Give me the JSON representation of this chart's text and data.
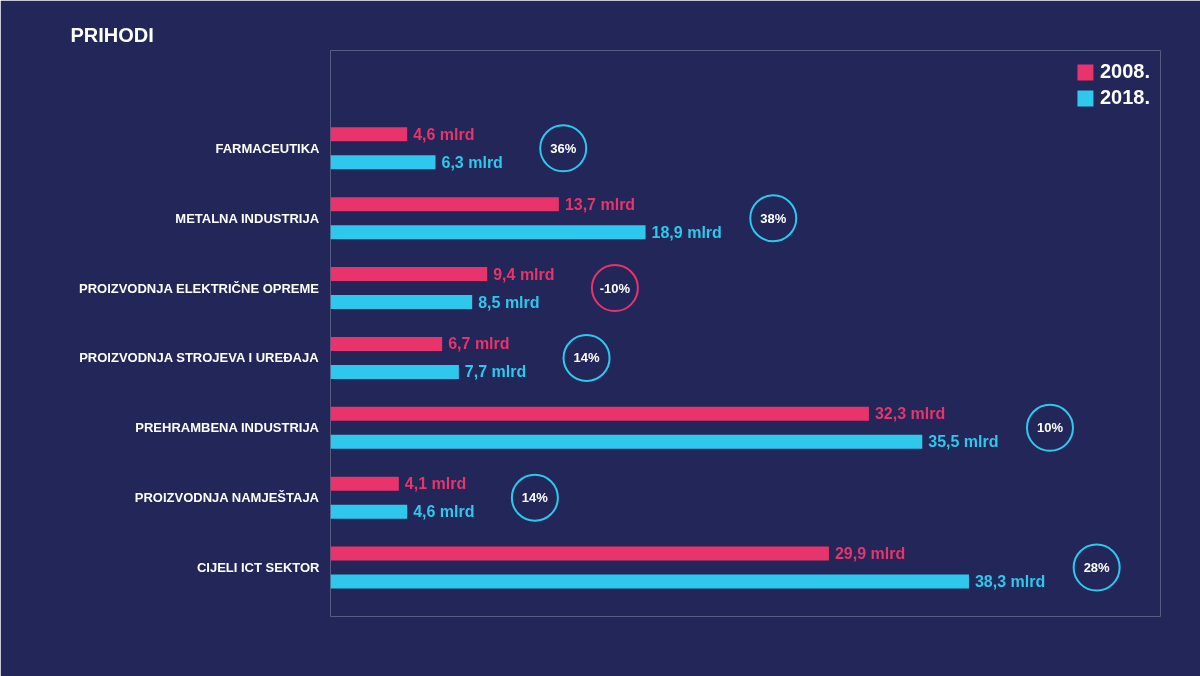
{
  "chart_data": {
    "type": "bar",
    "orientation": "horizontal",
    "title": "PRIHODI",
    "categories": [
      "FARMACEUTIKA",
      "METALNA INDUSTRIJA",
      "PROIZVODNJA ELEKTRIČNE OPREME",
      "PROIZVODNJA STROJEVA I UREĐAJA",
      "PREHRAMBENA INDUSTRIJA",
      "PROIZVODNJA NAMJEŠTAJA",
      "CIJELI ICT SEKTOR"
    ],
    "series": [
      {
        "name": "2008.",
        "color": "#e8336b",
        "values": [
          4.6,
          13.7,
          9.4,
          6.7,
          32.3,
          4.1,
          29.9
        ],
        "value_labels": [
          "4,6 mlrd",
          "13,7 mlrd",
          "9,4 mlrd",
          "6,7 mlrd",
          "32,3 mlrd",
          "4,1 mlrd",
          "29,9 mlrd"
        ]
      },
      {
        "name": "2018.",
        "color": "#2ec8ec",
        "values": [
          6.3,
          18.9,
          8.5,
          7.7,
          35.5,
          4.6,
          38.3
        ],
        "value_labels": [
          "6,3 mlrd",
          "18,9 mlrd",
          "8,5 mlrd",
          "7,7 mlrd",
          "35,5 mlrd",
          "4,6 mlrd",
          "38,3 mlrd"
        ]
      }
    ],
    "annotations": [
      "36%",
      "38%",
      "-10%",
      "14%",
      "10%",
      "14%",
      "28%"
    ],
    "legend": "top right",
    "grid": false,
    "tick_labels": "y"
  }
}
